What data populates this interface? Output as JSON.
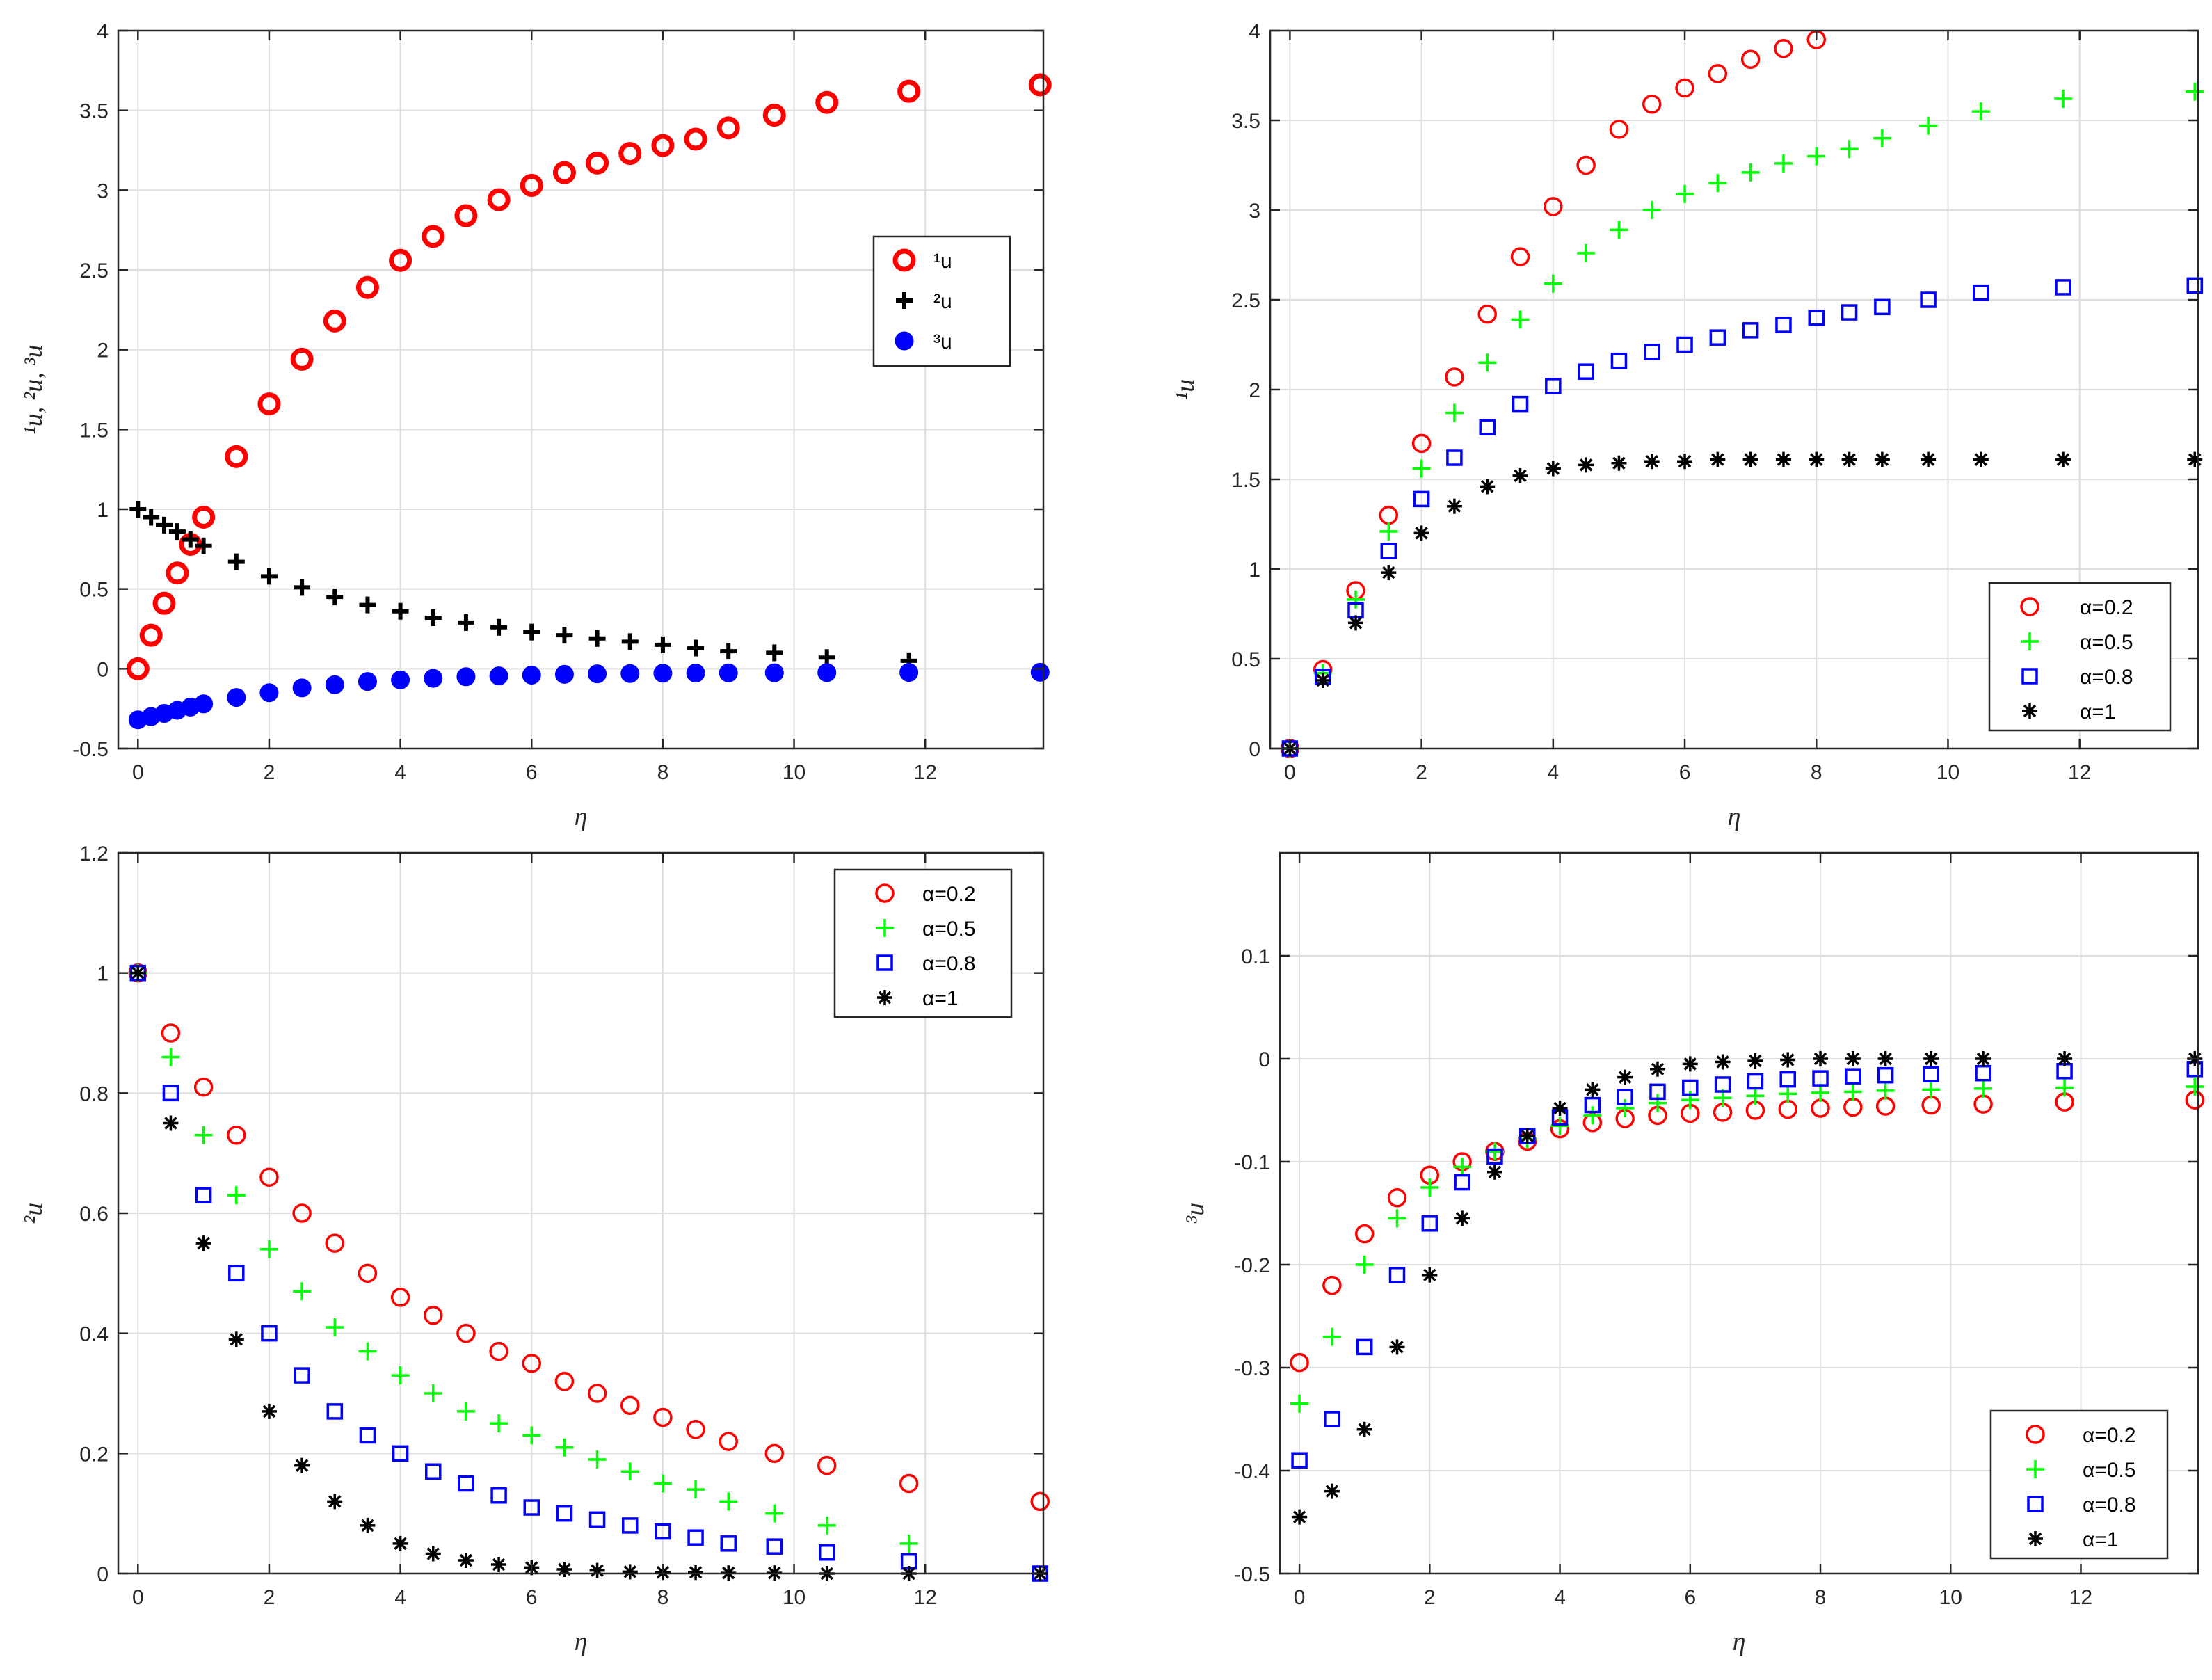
{
  "chart_data": [
    {
      "type": "scatter",
      "id": "panel-a",
      "title": "",
      "xlabel": "η",
      "ylabel": "¹u, ²u, ³u",
      "xlim": [
        -0.3,
        13.8
      ],
      "ylim": [
        -0.5,
        4
      ],
      "xticks": [
        0,
        2,
        4,
        6,
        8,
        10,
        12
      ],
      "yticks": [
        -0.5,
        0,
        0.5,
        1,
        1.5,
        2,
        2.5,
        3,
        3.5,
        4
      ],
      "ytick_labels": [
        "-0.5",
        "0",
        "0.5",
        "1",
        "1.5",
        "2",
        "2.5",
        "3",
        "3.5",
        "4"
      ],
      "grid": true,
      "legend_position": "center-right",
      "series": [
        {
          "name": "¹u",
          "sup": "1",
          "base": "u",
          "marker": "circle-thick",
          "color": "#ff0000",
          "x": [
            0,
            0.2,
            0.4,
            0.6,
            0.8,
            1,
            1.5,
            2,
            2.5,
            3,
            3.5,
            4,
            4.5,
            5,
            5.5,
            6,
            6.5,
            7,
            7.5,
            8,
            8.5,
            9,
            9.7,
            10.5,
            11.75,
            13.75
          ],
          "y": [
            0,
            0.21,
            0.41,
            0.6,
            0.78,
            0.95,
            1.33,
            1.66,
            1.94,
            2.18,
            2.39,
            2.56,
            2.71,
            2.84,
            2.94,
            3.03,
            3.11,
            3.17,
            3.23,
            3.28,
            3.32,
            3.39,
            3.47,
            3.55,
            3.62,
            3.66
          ]
        },
        {
          "name": "²u",
          "sup": "2",
          "base": "u",
          "marker": "plus-bold",
          "color": "#000000",
          "x": [
            0,
            0.2,
            0.4,
            0.6,
            0.8,
            1,
            1.5,
            2,
            2.5,
            3,
            3.5,
            4,
            4.5,
            5,
            5.5,
            6,
            6.5,
            7,
            7.5,
            8,
            8.5,
            9,
            9.7,
            10.5,
            11.75
          ],
          "y": [
            1,
            0.95,
            0.9,
            0.86,
            0.81,
            0.77,
            0.67,
            0.58,
            0.51,
            0.45,
            0.4,
            0.36,
            0.32,
            0.29,
            0.26,
            0.23,
            0.21,
            0.19,
            0.17,
            0.15,
            0.13,
            0.11,
            0.1,
            0.07,
            0.05
          ]
        },
        {
          "name": "³u",
          "sup": "3",
          "base": "u",
          "marker": "dot",
          "color": "#0000ff",
          "x": [
            0,
            0.2,
            0.4,
            0.6,
            0.8,
            1,
            1.5,
            2,
            2.5,
            3,
            3.5,
            4,
            4.5,
            5,
            5.5,
            6,
            6.5,
            7,
            7.5,
            8,
            8.5,
            9,
            9.7,
            10.5,
            11.75,
            13.75
          ],
          "y": [
            -0.32,
            -0.3,
            -0.28,
            -0.26,
            -0.24,
            -0.22,
            -0.18,
            -0.15,
            -0.12,
            -0.1,
            -0.08,
            -0.07,
            -0.06,
            -0.05,
            -0.045,
            -0.04,
            -0.035,
            -0.032,
            -0.03,
            -0.028,
            -0.027,
            -0.026,
            -0.025,
            -0.024,
            -0.023,
            -0.022
          ]
        }
      ]
    },
    {
      "type": "scatter",
      "id": "panel-b",
      "title": "",
      "xlabel": "η",
      "ylabel": "¹u",
      "xlim": [
        -0.3,
        13.8
      ],
      "ylim": [
        0,
        4
      ],
      "xticks": [
        0,
        2,
        4,
        6,
        8,
        10,
        12
      ],
      "yticks": [
        0,
        0.5,
        1,
        1.5,
        2,
        2.5,
        3,
        3.5,
        4
      ],
      "ytick_labels": [
        "0",
        "0.5",
        "1",
        "1.5",
        "2",
        "2.5",
        "3",
        "3.5",
        "4"
      ],
      "grid": true,
      "legend_position": "bottom-right",
      "series": [
        {
          "name": "α=0.2",
          "marker": "circle",
          "color": "#ff0000",
          "x": [
            0,
            0.5,
            1,
            1.5,
            2,
            2.5,
            3,
            3.5,
            4,
            4.5,
            5,
            5.5,
            6,
            6.5,
            7,
            7.5,
            8
          ],
          "y": [
            0,
            0.44,
            0.88,
            1.3,
            1.7,
            2.07,
            2.42,
            2.74,
            3.02,
            3.25,
            3.45,
            3.59,
            3.68,
            3.76,
            3.84,
            3.9,
            3.95
          ]
        },
        {
          "name": "α=0.5",
          "marker": "plus",
          "color": "#00ff00",
          "x": [
            0,
            0.5,
            1,
            1.5,
            2,
            2.5,
            3,
            3.5,
            4,
            4.5,
            5,
            5.5,
            6,
            6.5,
            7,
            7.5,
            8,
            8.5,
            9,
            9.7,
            10.5,
            11.75,
            13.75
          ],
          "y": [
            0,
            0.42,
            0.83,
            1.21,
            1.56,
            1.87,
            2.15,
            2.39,
            2.59,
            2.76,
            2.89,
            3.0,
            3.09,
            3.15,
            3.21,
            3.26,
            3.3,
            3.34,
            3.4,
            3.47,
            3.55,
            3.62,
            3.66
          ]
        },
        {
          "name": "α=0.8",
          "marker": "square",
          "color": "#0000ff",
          "x": [
            0,
            0.5,
            1,
            1.5,
            2,
            2.5,
            3,
            3.5,
            4,
            4.5,
            5,
            5.5,
            6,
            6.5,
            7,
            7.5,
            8,
            8.5,
            9,
            9.7,
            10.5,
            11.75,
            13.75
          ],
          "y": [
            0,
            0.4,
            0.77,
            1.1,
            1.39,
            1.62,
            1.79,
            1.92,
            2.02,
            2.1,
            2.16,
            2.21,
            2.25,
            2.29,
            2.33,
            2.36,
            2.4,
            2.43,
            2.46,
            2.5,
            2.54,
            2.57,
            2.58
          ]
        },
        {
          "name": "α=1",
          "marker": "asterisk",
          "color": "#000000",
          "x": [
            0,
            0.5,
            1,
            1.5,
            2,
            2.5,
            3,
            3.5,
            4,
            4.5,
            5,
            5.5,
            6,
            6.5,
            7,
            7.5,
            8,
            8.5,
            9,
            9.7,
            10.5,
            11.75,
            13.75
          ],
          "y": [
            0,
            0.38,
            0.7,
            0.98,
            1.2,
            1.35,
            1.46,
            1.52,
            1.56,
            1.58,
            1.59,
            1.6,
            1.6,
            1.61,
            1.61,
            1.61,
            1.61,
            1.61,
            1.61,
            1.61,
            1.61,
            1.61,
            1.61
          ]
        }
      ]
    },
    {
      "type": "scatter",
      "id": "panel-c",
      "title": "",
      "xlabel": "η",
      "ylabel": "²u",
      "xlim": [
        -0.3,
        13.8
      ],
      "ylim": [
        0,
        1.2
      ],
      "xticks": [
        0,
        2,
        4,
        6,
        8,
        10,
        12
      ],
      "yticks": [
        0,
        0.2,
        0.4,
        0.6,
        0.8,
        1,
        1.2
      ],
      "ytick_labels": [
        "0",
        "0.2",
        "0.4",
        "0.6",
        "0.8",
        "1",
        "1.2"
      ],
      "grid": true,
      "legend_position": "top-right",
      "series": [
        {
          "name": "α=0.2",
          "marker": "circle",
          "color": "#ff0000",
          "x": [
            0,
            0.5,
            1,
            1.5,
            2,
            2.5,
            3,
            3.5,
            4,
            4.5,
            5,
            5.5,
            6,
            6.5,
            7,
            7.5,
            8,
            8.5,
            9,
            9.7,
            10.5,
            11.75,
            13.75
          ],
          "y": [
            1,
            0.9,
            0.81,
            0.73,
            0.66,
            0.6,
            0.55,
            0.5,
            0.46,
            0.43,
            0.4,
            0.37,
            0.35,
            0.32,
            0.3,
            0.28,
            0.26,
            0.24,
            0.22,
            0.2,
            0.18,
            0.15,
            0.12
          ]
        },
        {
          "name": "α=0.5",
          "marker": "plus",
          "color": "#00ff00",
          "x": [
            0,
            0.5,
            1,
            1.5,
            2,
            2.5,
            3,
            3.5,
            4,
            4.5,
            5,
            5.5,
            6,
            6.5,
            7,
            7.5,
            8,
            8.5,
            9,
            9.7,
            10.5,
            11.75
          ],
          "y": [
            1,
            0.86,
            0.73,
            0.63,
            0.54,
            0.47,
            0.41,
            0.37,
            0.33,
            0.3,
            0.27,
            0.25,
            0.23,
            0.21,
            0.19,
            0.17,
            0.15,
            0.14,
            0.12,
            0.1,
            0.08,
            0.05
          ]
        },
        {
          "name": "α=0.8",
          "marker": "square",
          "color": "#0000ff",
          "x": [
            0,
            0.5,
            1,
            1.5,
            2,
            2.5,
            3,
            3.5,
            4,
            4.5,
            5,
            5.5,
            6,
            6.5,
            7,
            7.5,
            8,
            8.5,
            9,
            9.7,
            10.5,
            11.75,
            13.75
          ],
          "y": [
            1,
            0.8,
            0.63,
            0.5,
            0.4,
            0.33,
            0.27,
            0.23,
            0.2,
            0.17,
            0.15,
            0.13,
            0.11,
            0.1,
            0.09,
            0.08,
            0.07,
            0.06,
            0.05,
            0.045,
            0.035,
            0.02,
            0
          ]
        },
        {
          "name": "α=1",
          "marker": "asterisk",
          "color": "#000000",
          "x": [
            0,
            0.5,
            1,
            1.5,
            2,
            2.5,
            3,
            3.5,
            4,
            4.5,
            5,
            5.5,
            6,
            6.5,
            7,
            7.5,
            8,
            8.5,
            9,
            9.7,
            10.5,
            11.75,
            13.75
          ],
          "y": [
            1,
            0.75,
            0.55,
            0.39,
            0.27,
            0.18,
            0.12,
            0.08,
            0.05,
            0.033,
            0.022,
            0.015,
            0.01,
            0.007,
            0.005,
            0.003,
            0.002,
            0.002,
            0.001,
            0.001,
            0,
            0,
            0
          ]
        }
      ]
    },
    {
      "type": "scatter",
      "id": "panel-d",
      "title": "",
      "xlabel": "η",
      "ylabel": "³u",
      "xlim": [
        -0.3,
        13.8
      ],
      "ylim": [
        -0.5,
        0.2
      ],
      "xticks": [
        0,
        2,
        4,
        6,
        8,
        10,
        12
      ],
      "yticks": [
        -0.5,
        -0.4,
        -0.3,
        -0.2,
        -0.1,
        0,
        0.1
      ],
      "ytick_labels": [
        "-0.5",
        "-0.4",
        "-0.3",
        "-0.2",
        "-0.1",
        "0",
        "0.1"
      ],
      "grid": true,
      "legend_position": "bottom-right",
      "series": [
        {
          "name": "α=0.2",
          "marker": "circle",
          "color": "#ff0000",
          "x": [
            0,
            0.5,
            1,
            1.5,
            2,
            2.5,
            3,
            3.5,
            4,
            4.5,
            5,
            5.5,
            6,
            6.5,
            7,
            7.5,
            8,
            8.5,
            9,
            9.7,
            10.5,
            11.75,
            13.75
          ],
          "y": [
            -0.295,
            -0.22,
            -0.17,
            -0.135,
            -0.113,
            -0.1,
            -0.09,
            -0.08,
            -0.068,
            -0.062,
            -0.058,
            -0.055,
            -0.053,
            -0.052,
            -0.05,
            -0.049,
            -0.048,
            -0.047,
            -0.046,
            -0.045,
            -0.044,
            -0.042,
            -0.04
          ]
        },
        {
          "name": "α=0.5",
          "marker": "plus",
          "color": "#00ff00",
          "x": [
            0,
            0.5,
            1,
            1.5,
            2,
            2.5,
            3,
            3.5,
            4,
            4.5,
            5,
            5.5,
            6,
            6.5,
            7,
            7.5,
            8,
            8.5,
            9,
            9.7,
            10.5,
            11.75,
            13.75
          ],
          "y": [
            -0.335,
            -0.27,
            -0.2,
            -0.155,
            -0.125,
            -0.105,
            -0.09,
            -0.078,
            -0.065,
            -0.055,
            -0.048,
            -0.043,
            -0.04,
            -0.038,
            -0.036,
            -0.034,
            -0.033,
            -0.032,
            -0.031,
            -0.03,
            -0.029,
            -0.028,
            -0.027
          ]
        },
        {
          "name": "α=0.8",
          "marker": "square",
          "color": "#0000ff",
          "x": [
            0,
            0.5,
            1,
            1.5,
            2,
            2.5,
            3,
            3.5,
            4,
            4.5,
            5,
            5.5,
            6,
            6.5,
            7,
            7.5,
            8,
            8.5,
            9,
            9.7,
            10.5,
            11.75,
            13.75
          ],
          "y": [
            -0.39,
            -0.35,
            -0.28,
            -0.21,
            -0.16,
            -0.12,
            -0.095,
            -0.075,
            -0.057,
            -0.045,
            -0.037,
            -0.032,
            -0.028,
            -0.025,
            -0.022,
            -0.02,
            -0.019,
            -0.017,
            -0.016,
            -0.015,
            -0.014,
            -0.012,
            -0.01
          ]
        },
        {
          "name": "α=1",
          "marker": "asterisk",
          "color": "#000000",
          "x": [
            0,
            0.5,
            1,
            1.5,
            2,
            2.5,
            3,
            3.5,
            4,
            4.5,
            5,
            5.5,
            6,
            6.5,
            7,
            7.5,
            8,
            8.5,
            9,
            9.7,
            10.5,
            11.75,
            13.75
          ],
          "y": [
            -0.445,
            -0.42,
            -0.36,
            -0.28,
            -0.21,
            -0.155,
            -0.11,
            -0.075,
            -0.048,
            -0.03,
            -0.018,
            -0.01,
            -0.005,
            -0.003,
            -0.002,
            -0.001,
            0,
            0,
            0,
            0,
            0,
            0,
            0
          ]
        }
      ]
    }
  ]
}
